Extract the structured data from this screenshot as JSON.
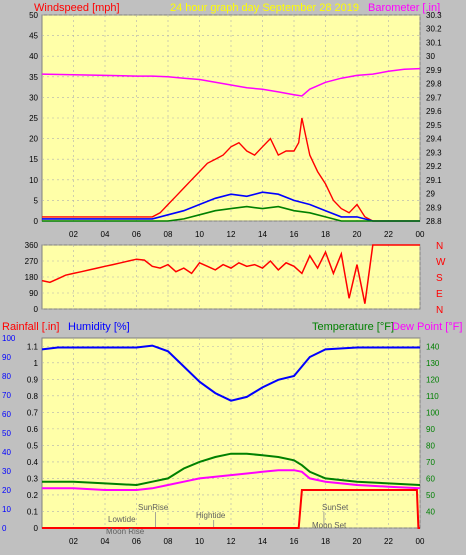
{
  "header": {
    "windspeed_label": "Windspeed [mph]",
    "graph_title": "24 hour graph day   September 28 2019",
    "barometer_label": "Barometer [.in]"
  },
  "compass": [
    "N",
    "W",
    "S",
    "E",
    "N"
  ],
  "lower_header": {
    "rainfall_label": "Rainfall [.in]",
    "humidity_label": "Humidity [%]",
    "temperature_label": "Temperature [°F]",
    "dewpoint_label": "Dew Point [°F]"
  },
  "tide_labels": {
    "lowtide": "Lowtide",
    "moonrise": "Moon Rise",
    "sunrise": "SunRise",
    "hightide": "Hightide",
    "sunset": "SunSet",
    "moonset": "Moon Set"
  },
  "colors": {
    "plot_bg": "#ffffa8",
    "frame": "#c0c0c0",
    "wind_speed": "#ff0000",
    "wind_avg": "#0000ff",
    "wind_low": "#008000",
    "barometer": "#ff00ff",
    "wind_dir": "#ff0000",
    "humidity": "#0000ff",
    "temperature": "#008000",
    "dewpoint": "#ff00ff",
    "rainfall": "#ff0000"
  },
  "chart_data": [
    {
      "type": "line",
      "name": "wind",
      "x_ticks": [
        "02",
        "04",
        "06",
        "08",
        "10",
        "12",
        "14",
        "16",
        "18",
        "20",
        "22",
        "00"
      ],
      "y_left_ticks": [
        "0",
        "5",
        "10",
        "15",
        "20",
        "25",
        "30",
        "35",
        "40",
        "45",
        "50"
      ],
      "y_right_ticks": [
        "28.8",
        "28.9",
        "29",
        "29.1",
        "29.2",
        "29.3",
        "29.4",
        "29.5",
        "29.6",
        "29.7",
        "29.8",
        "29.9",
        "30",
        "30.1",
        "30.2",
        "30.3"
      ],
      "ylim_left": [
        0,
        50
      ],
      "ylim_right": [
        28.8,
        30.3
      ],
      "xlim": [
        0,
        24
      ],
      "barometer": {
        "x": [
          0,
          2,
          4,
          6,
          7,
          8,
          9,
          10,
          11,
          12,
          13,
          14,
          15,
          16,
          16.5,
          17,
          18,
          19,
          20,
          21,
          22,
          23,
          24
        ],
        "y": [
          29.87,
          29.865,
          29.86,
          29.855,
          29.855,
          29.85,
          29.84,
          29.83,
          29.81,
          29.79,
          29.77,
          29.76,
          29.74,
          29.72,
          29.71,
          29.76,
          29.81,
          29.84,
          29.86,
          29.87,
          29.89,
          29.905,
          29.91
        ]
      },
      "wind_gust": {
        "x": [
          0,
          7,
          7.5,
          8,
          8.5,
          9,
          9.5,
          10,
          10.5,
          11,
          11.5,
          12,
          12.5,
          13,
          13.5,
          14,
          14.5,
          15,
          15.5,
          16,
          16.3,
          16.5,
          17,
          17.5,
          18,
          18.5,
          19,
          19.5,
          20,
          20.5,
          21,
          24
        ],
        "y": [
          1,
          1,
          2,
          4,
          6,
          8,
          10,
          12,
          14,
          15,
          16,
          18,
          19,
          17,
          16,
          18,
          20,
          16,
          17,
          17,
          19,
          25,
          16,
          12,
          9,
          5,
          3,
          2,
          4,
          1,
          0,
          0
        ]
      },
      "wind_avg": {
        "x": [
          0,
          7,
          8,
          9,
          10,
          11,
          12,
          13,
          14,
          15,
          16,
          17,
          18,
          19,
          20,
          21,
          24
        ],
        "y": [
          0.5,
          0.5,
          1.5,
          2.5,
          4,
          5.5,
          6.5,
          6,
          7,
          6.5,
          5,
          4,
          2.5,
          1,
          1,
          0,
          0
        ]
      },
      "wind_low": {
        "x": [
          0,
          8,
          9,
          10,
          11,
          12,
          13,
          14,
          15,
          16,
          17,
          18,
          19,
          24
        ],
        "y": [
          0,
          0,
          0.5,
          1.5,
          2.5,
          3,
          3.5,
          3,
          3.5,
          2.5,
          2,
          1,
          0,
          0
        ]
      }
    },
    {
      "type": "line",
      "name": "wind_direction",
      "y_ticks": [
        "0",
        "90",
        "180",
        "270",
        "360"
      ],
      "ylim": [
        0,
        360
      ],
      "xlim": [
        0,
        24
      ],
      "x": [
        0,
        0.5,
        1,
        1.5,
        2,
        2.5,
        3,
        3.5,
        4,
        4.5,
        5,
        5.5,
        6,
        6.5,
        7,
        7.5,
        8,
        8.5,
        9,
        9.5,
        10,
        10.5,
        11,
        11.5,
        12,
        12.5,
        13,
        13.5,
        14,
        14.5,
        15,
        15.5,
        16,
        16.5,
        17,
        17.5,
        18,
        18.5,
        19,
        19.5,
        20,
        20.5,
        21,
        24
      ],
      "y": [
        160,
        150,
        170,
        190,
        200,
        210,
        220,
        230,
        240,
        250,
        260,
        270,
        280,
        275,
        240,
        230,
        250,
        210,
        230,
        200,
        260,
        240,
        220,
        250,
        230,
        260,
        240,
        250,
        230,
        270,
        220,
        260,
        240,
        200,
        300,
        230,
        320,
        200,
        310,
        60,
        250,
        30,
        360,
        360
      ]
    },
    {
      "type": "line",
      "name": "climate",
      "x_ticks": [
        "02",
        "04",
        "06",
        "08",
        "10",
        "12",
        "14",
        "16",
        "18",
        "20",
        "22",
        "00"
      ],
      "y_humidity_ticks": [
        "0",
        "10",
        "20",
        "30",
        "40",
        "50",
        "60",
        "70",
        "80",
        "90",
        "100"
      ],
      "y_rain_ticks": [
        "0",
        "0.1",
        "0.2",
        "0.3",
        "0.4",
        "0.5",
        "0.6",
        "0.7",
        "0.8",
        "0.9",
        "1",
        "1.1"
      ],
      "y_temp_ticks": [
        "40",
        "50",
        "60",
        "70",
        "80",
        "90",
        "100",
        "110",
        "120",
        "130",
        "140"
      ],
      "ylim_humidity": [
        0,
        100
      ],
      "ylim_rain": [
        0,
        1.15
      ],
      "ylim_temp": [
        30,
        145
      ],
      "xlim": [
        0,
        24
      ],
      "humidity": {
        "x": [
          0,
          1,
          2,
          4,
          6,
          7,
          8,
          9,
          10,
          11,
          12,
          13,
          14,
          15,
          16,
          16.5,
          17,
          18,
          20,
          22,
          24
        ],
        "y": [
          94,
          95,
          95,
          95,
          95,
          96,
          93,
          85,
          77,
          71,
          67,
          69,
          74,
          78,
          80,
          85,
          90,
          94,
          95,
          95,
          95
        ]
      },
      "temperature": {
        "x": [
          0,
          2,
          4,
          6,
          7,
          8,
          9,
          10,
          11,
          12,
          13,
          14,
          15,
          16,
          16.5,
          17,
          18,
          20,
          22,
          24
        ],
        "y": [
          58,
          58,
          57,
          56,
          58,
          60,
          66,
          70,
          73,
          75,
          75,
          74,
          73,
          71,
          68,
          64,
          60,
          58,
          57,
          56
        ]
      },
      "dewpoint": {
        "x": [
          0,
          2,
          4,
          6,
          7,
          8,
          9,
          10,
          11,
          12,
          13,
          14,
          15,
          16,
          16.5,
          17,
          18,
          20,
          22,
          24
        ],
        "y": [
          54,
          54,
          53,
          53,
          54,
          56,
          58,
          60,
          61,
          62,
          63,
          64,
          65,
          65,
          64,
          60,
          58,
          56,
          55,
          54
        ]
      },
      "rainfall": {
        "x": [
          0,
          16.3,
          16.5,
          17,
          18,
          20,
          22,
          23.8,
          23.9,
          24
        ],
        "y": [
          0,
          0,
          0.23,
          0.23,
          0.23,
          0.23,
          0.23,
          0.23,
          0,
          0
        ]
      },
      "events": {
        "sunrise_x": 7.2,
        "sunset_x": 17.9,
        "hightide_x": 10.9,
        "lowtide_x": 5.4,
        "moonrise_x": 6.1,
        "moonset_x": 17.6
      }
    }
  ]
}
